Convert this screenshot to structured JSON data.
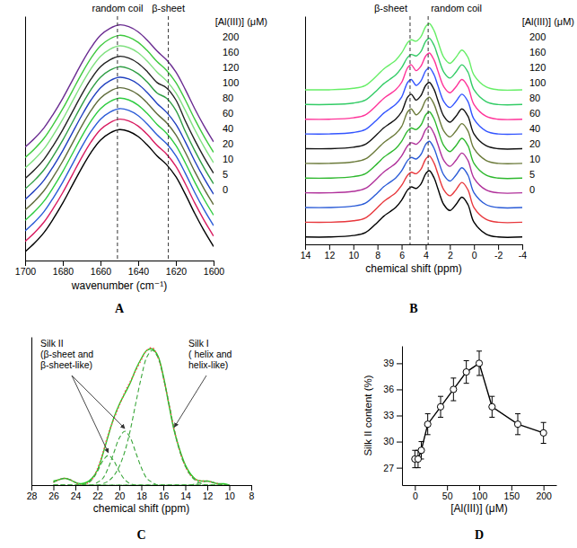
{
  "chart_data": [
    {
      "type": "line",
      "title": "A",
      "x_label": "wavenumber (cm⁻¹)",
      "legend_title": "[Al(III)] (μM)",
      "legend": "right",
      "tick_labels": "x",
      "x": [
        1700,
        1695,
        1690,
        1685,
        1680,
        1675,
        1670,
        1665,
        1660,
        1655,
        1650,
        1645,
        1640,
        1635,
        1630,
        1625,
        1620,
        1615,
        1610,
        1605,
        1600
      ],
      "xlim": [
        1700,
        1600
      ],
      "xticks": [
        1700,
        1680,
        1660,
        1640,
        1620,
        1600
      ],
      "ylim": [
        0,
        140
      ],
      "annotations": [
        {
          "text": "random coil",
          "x": 1651
        },
        {
          "text": "β-sheet",
          "x": 1624
        }
      ],
      "series": [
        {
          "name": "200",
          "color": "#6a2c91",
          "values": [
            65,
            70,
            76,
            84,
            93,
            103,
            113,
            122,
            129,
            133,
            135,
            134,
            131,
            126,
            120,
            115,
            108,
            98,
            87,
            77,
            68
          ]
        },
        {
          "name": "160",
          "color": "#3ec93e",
          "values": [
            59,
            64,
            70,
            78,
            87,
            97,
            107,
            116,
            123,
            127,
            129,
            128,
            125,
            120,
            114,
            109,
            102,
            92,
            81,
            71,
            62
          ]
        },
        {
          "name": "120",
          "color": "#7fe07f",
          "values": [
            53,
            58,
            64,
            72,
            81,
            91,
            101,
            110,
            117,
            121,
            123,
            122,
            119,
            114,
            108,
            103,
            96,
            86,
            75,
            65,
            56
          ]
        },
        {
          "name": "100",
          "color": "#222222",
          "values": [
            47,
            52,
            58,
            66,
            75,
            85,
            95,
            104,
            111,
            115,
            117,
            116,
            113,
            108,
            102,
            99,
            92,
            80,
            69,
            59,
            50
          ]
        },
        {
          "name": "80",
          "color": "#2f9e44",
          "values": [
            41,
            46,
            52,
            60,
            69,
            79,
            89,
            98,
            105,
            109,
            111,
            110,
            107,
            102,
            96,
            93,
            86,
            74,
            63,
            53,
            44
          ]
        },
        {
          "name": "60",
          "color": "#1f3fbf",
          "values": [
            35,
            40,
            46,
            54,
            63,
            73,
            83,
            92,
            99,
            103,
            105,
            104,
            101,
            96,
            90,
            85,
            78,
            68,
            57,
            47,
            38
          ]
        },
        {
          "name": "40",
          "color": "#5f6b3a",
          "values": [
            29,
            34,
            40,
            48,
            57,
            67,
            77,
            86,
            93,
            97,
            99,
            98,
            95,
            90,
            84,
            79,
            72,
            62,
            51,
            41,
            32
          ]
        },
        {
          "name": "20",
          "color": "#2ecc40",
          "values": [
            23,
            28,
            34,
            42,
            51,
            61,
            71,
            80,
            87,
            91,
            93,
            92,
            89,
            84,
            78,
            73,
            66,
            56,
            45,
            35,
            26
          ]
        },
        {
          "name": "10",
          "color": "#2a5bd7",
          "values": [
            17,
            22,
            28,
            36,
            45,
            55,
            65,
            74,
            81,
            85,
            87,
            86,
            83,
            78,
            72,
            67,
            60,
            50,
            39,
            29,
            20
          ]
        },
        {
          "name": "5",
          "color": "#d81b60",
          "values": [
            11,
            16,
            22,
            30,
            39,
            49,
            59,
            68,
            75,
            79,
            81,
            80,
            77,
            72,
            66,
            61,
            54,
            44,
            33,
            23,
            14
          ]
        },
        {
          "name": "0",
          "color": "#000000",
          "values": [
            5,
            10,
            16,
            24,
            33,
            43,
            53,
            62,
            69,
            73,
            75,
            74,
            71,
            66,
            60,
            55,
            48,
            38,
            27,
            17,
            8
          ]
        }
      ]
    },
    {
      "type": "line",
      "title": "B",
      "x_label": "chemical shift (ppm)",
      "legend_title": "[Al(III)] (μM)",
      "legend": "right",
      "tick_labels": "x",
      "x": [
        14,
        12,
        10,
        9,
        8,
        7.5,
        7,
        6.5,
        6,
        5.5,
        5.2,
        4.8,
        4.4,
        4,
        3.7,
        3.3,
        3,
        2.5,
        2,
        1.5,
        1,
        0.5,
        0,
        -1,
        -2,
        -4
      ],
      "xlim": [
        14,
        -4
      ],
      "xticks": [
        14,
        12,
        10,
        8,
        6,
        4,
        2,
        0,
        -2,
        -4
      ],
      "ylim": [
        -5,
        150
      ],
      "annotations": [
        {
          "text": "β-sheet",
          "x": 5.3
        },
        {
          "text": "random coil",
          "x": 3.8
        }
      ],
      "series": [
        {
          "name": "200",
          "color": "#66ee66",
          "values": [
            100,
            100,
            101,
            103,
            110,
            114,
            117,
            120,
            125,
            132,
            134,
            133,
            136,
            143,
            145,
            140,
            133,
            122,
            118,
            122,
            127,
            122,
            110,
            102,
            100,
            100
          ]
        },
        {
          "name": "160",
          "color": "#33cc66",
          "values": [
            90,
            90,
            91,
            93,
            100,
            104,
            107,
            110,
            115,
            122,
            124,
            123,
            126,
            133,
            135,
            130,
            123,
            112,
            108,
            112,
            117,
            112,
            100,
            92,
            90,
            90
          ]
        },
        {
          "name": "120",
          "color": "#ff3399",
          "values": [
            80,
            80,
            81,
            83,
            90,
            94,
            97,
            100,
            105,
            115,
            117,
            113,
            116,
            123,
            125,
            120,
            113,
            102,
            98,
            102,
            107,
            102,
            90,
            82,
            80,
            80
          ]
        },
        {
          "name": "100",
          "color": "#3355ff",
          "values": [
            70,
            70,
            71,
            73,
            80,
            84,
            87,
            90,
            95,
            105,
            107,
            103,
            106,
            113,
            115,
            110,
            103,
            92,
            88,
            92,
            97,
            92,
            80,
            72,
            70,
            70
          ]
        },
        {
          "name": "80",
          "color": "#111111",
          "values": [
            60,
            60,
            61,
            63,
            70,
            74,
            77,
            80,
            85,
            95,
            97,
            93,
            96,
            103,
            105,
            100,
            93,
            82,
            78,
            82,
            87,
            82,
            70,
            62,
            60,
            60
          ]
        },
        {
          "name": "60",
          "color": "#6b7a3a",
          "values": [
            50,
            50,
            51,
            53,
            60,
            64,
            67,
            70,
            75,
            85,
            87,
            83,
            86,
            93,
            95,
            90,
            83,
            72,
            68,
            72,
            77,
            72,
            60,
            52,
            50,
            50
          ]
        },
        {
          "name": "40",
          "color": "#2eb82e",
          "values": [
            40,
            40,
            41,
            43,
            50,
            54,
            57,
            60,
            65,
            72,
            74,
            73,
            76,
            83,
            85,
            80,
            73,
            62,
            58,
            62,
            67,
            62,
            50,
            42,
            40,
            40
          ]
        },
        {
          "name": "20",
          "color": "#b0309a",
          "values": [
            30,
            30,
            31,
            33,
            40,
            44,
            47,
            50,
            55,
            62,
            64,
            63,
            66,
            73,
            75,
            70,
            63,
            52,
            48,
            52,
            57,
            52,
            40,
            32,
            30,
            30
          ]
        },
        {
          "name": "10",
          "color": "#2a5bd7",
          "values": [
            20,
            20,
            21,
            23,
            30,
            34,
            37,
            40,
            45,
            52,
            54,
            53,
            56,
            63,
            65,
            60,
            53,
            42,
            38,
            42,
            47,
            42,
            30,
            22,
            20,
            20
          ]
        },
        {
          "name": "5",
          "color": "#e8383d",
          "values": [
            10,
            10,
            11,
            13,
            20,
            24,
            27,
            30,
            35,
            42,
            44,
            43,
            46,
            53,
            55,
            50,
            43,
            32,
            28,
            32,
            37,
            32,
            20,
            12,
            10,
            10
          ]
        },
        {
          "name": "0",
          "color": "#000000",
          "values": [
            0,
            0,
            1,
            3,
            10,
            14,
            17,
            20,
            25,
            32,
            34,
            33,
            36,
            43,
            45,
            40,
            33,
            22,
            18,
            22,
            27,
            22,
            10,
            2,
            0,
            0
          ]
        }
      ]
    },
    {
      "type": "line",
      "title": "C",
      "x_label": "chemical shift (ppm)",
      "tick_labels": "x",
      "x": [
        26,
        25.5,
        25,
        24.5,
        24,
        23.5,
        23,
        22.5,
        22,
        21.5,
        21,
        20.5,
        20,
        19.5,
        19,
        18.5,
        18,
        17.5,
        17,
        16.5,
        16,
        15.5,
        15,
        14.5,
        14,
        13.5,
        13,
        12.5,
        12,
        11.5,
        11,
        10.5,
        10
      ],
      "xlim": [
        28,
        8
      ],
      "xticks": [
        28,
        26,
        24,
        22,
        20,
        18,
        16,
        14,
        12,
        10,
        8
      ],
      "ylim": [
        0,
        110
      ],
      "annotations": [
        {
          "lines": [
            "Silk II",
            "(β-sheet and",
            "β-sheet-like)"
          ]
        },
        {
          "lines": [
            "Silk I",
            "( helix and",
            "helix-like)"
          ]
        }
      ],
      "series": [
        {
          "color": "#22cc22",
          "line_style": "solid",
          "values": [
            3,
            4,
            5,
            4,
            2,
            1,
            2,
            5,
            11,
            23,
            37,
            50,
            60,
            68,
            76,
            86,
            94,
            100,
            101,
            96,
            81,
            60,
            40,
            26,
            15,
            8,
            4,
            3,
            3,
            2,
            1,
            1,
            0
          ]
        },
        {
          "color": "#ff4d4d",
          "line_style": "dotted",
          "values": [
            2,
            4,
            5,
            4,
            2,
            0,
            1,
            4,
            12,
            24,
            38,
            49,
            59,
            69,
            77,
            85,
            93,
            100,
            102,
            95,
            80,
            61,
            41,
            25,
            14,
            7,
            4,
            3,
            3,
            2,
            1,
            0,
            0
          ]
        },
        {
          "color": "#3aa63a",
          "line_style": "dashed",
          "values": [
            0,
            0,
            0,
            0,
            0,
            0,
            0,
            0,
            0,
            1,
            3,
            7,
            14,
            25,
            41,
            61,
            80,
            95,
            100,
            95,
            80,
            61,
            41,
            25,
            14,
            7,
            3,
            1,
            0,
            0,
            0,
            0,
            0
          ]
        },
        {
          "color": "#3aa63a",
          "line_style": "dashed",
          "values": [
            0,
            0,
            0,
            0,
            0,
            0,
            0,
            0,
            2,
            5,
            13,
            24,
            35,
            40,
            35,
            24,
            13,
            5,
            2,
            0,
            0,
            0,
            0,
            0,
            0,
            0,
            0,
            0,
            0,
            0,
            0,
            0,
            0
          ]
        },
        {
          "color": "#3aa63a",
          "line_style": "dashed",
          "values": [
            0,
            0,
            0,
            0,
            0,
            0,
            1,
            4,
            10,
            18,
            22,
            18,
            10,
            4,
            1,
            0,
            0,
            0,
            0,
            0,
            0,
            0,
            0,
            0,
            0,
            0,
            0,
            0,
            0,
            0,
            0,
            0,
            0
          ]
        },
        {
          "color": "#3aa63a",
          "line_style": "dashed",
          "values": [
            2,
            4,
            5,
            4,
            2,
            0,
            0,
            0,
            0,
            0,
            0,
            0,
            0,
            0,
            0,
            0,
            0,
            0,
            0,
            0,
            0,
            0,
            0,
            0,
            0,
            0,
            0,
            0,
            0,
            0,
            0,
            0,
            0
          ]
        },
        {
          "color": "#3aa63a",
          "line_style": "dashed",
          "values": [
            0,
            0,
            0,
            0,
            0,
            0,
            0,
            0,
            0,
            0,
            0,
            0,
            0,
            0,
            0,
            0,
            0,
            0,
            0,
            0,
            0,
            0,
            0,
            0,
            0,
            0,
            1,
            2,
            3,
            2,
            1,
            0,
            0
          ]
        }
      ]
    },
    {
      "type": "line",
      "title": "D",
      "x_label": "[Al(III)] (μM)",
      "y_label": "Silk II content (%)",
      "x": [
        0,
        5,
        10,
        20,
        40,
        60,
        80,
        100,
        120,
        160,
        200
      ],
      "xlim": [
        -20,
        220
      ],
      "xticks": [
        0,
        50,
        100,
        150,
        200
      ],
      "ylim": [
        25,
        41
      ],
      "yticks": [
        27,
        30,
        33,
        36,
        39
      ],
      "series": [
        {
          "color": "#000000",
          "marker": "circle",
          "line_style": "solid",
          "values": [
            28,
            28,
            29,
            32,
            34,
            36,
            38,
            39,
            34,
            32,
            31
          ],
          "errors": [
            1,
            1,
            1,
            1.2,
            1.2,
            1.3,
            1.3,
            1.4,
            1.2,
            1.2,
            1.2
          ]
        }
      ]
    }
  ]
}
